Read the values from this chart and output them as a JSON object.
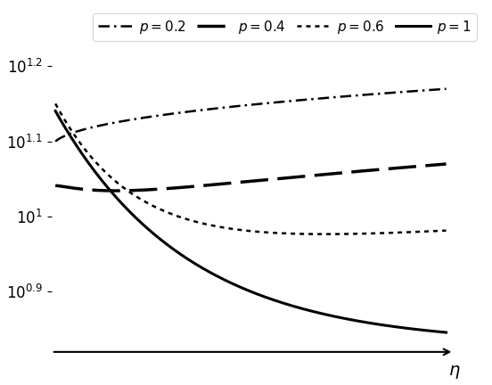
{
  "title": "",
  "xlabel": "$\\eta$",
  "ylabel": "",
  "ylim_log": [
    0.82,
    1.28
  ],
  "xlim": [
    0.0,
    1.02
  ],
  "background_color": "#ffffff",
  "line_color": "#000000",
  "curves": [
    {
      "label": "$p = 0.2$",
      "p": 0.2
    },
    {
      "label": "$p = 0.4$",
      "p": 0.4
    },
    {
      "label": "$p = 0.6$",
      "p": 0.6
    },
    {
      "label": "$p = 1$",
      "p": 1.0
    }
  ],
  "yticks": [
    0.9,
    1.0,
    1.1,
    1.2
  ],
  "ytick_labels": [
    "$10^{0.9}$",
    "$10^{1}$",
    "$10^{1.1}$",
    "$10^{1.2}$"
  ],
  "legend_fontsize": 11,
  "arrow_lw": 1.5,
  "curve_lw_dashdot": 1.8,
  "curve_lw_dashed": 2.5,
  "curve_lw_dotted": 1.8,
  "curve_lw_solid": 2.2
}
